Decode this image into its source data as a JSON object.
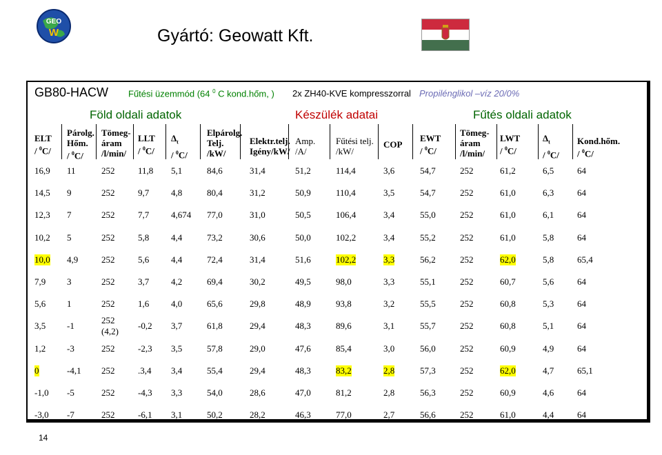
{
  "logo": {
    "text": "GEO W"
  },
  "title": "Gyártó: Geowatt Kft.",
  "subtitle": {
    "model": "GB80-HACW",
    "mode": "Fűtési üzemmód (64 0 C kond.hőm, )",
    "compressor": "2x ZH40-KVE kompresszorral",
    "fluid": "Propilénglikol –víz 20/0%"
  },
  "sections": {
    "earth": "Föld oldali adatok",
    "device": "Készülék adatai",
    "heating": "Fűtés oldali adatok"
  },
  "headers": [
    [
      "ELT",
      "/ 0 C/"
    ],
    [
      "Párolg.",
      "Hőm.",
      "/ 0 C/"
    ],
    [
      "Tömeg-",
      "áram",
      "/l/min/"
    ],
    [
      "LLT",
      "/ 0 C/"
    ],
    [
      "Δ t",
      "/ 0 C/"
    ],
    [
      "Elpárolg.",
      "Telj.",
      "/kW/"
    ],
    [
      "Elektr.telj.",
      "Igény/kW/"
    ],
    [
      "Amp.",
      "/A/"
    ],
    [
      "Fűtési telj.",
      "/kW/"
    ],
    [
      "COP"
    ],
    [
      "EWT",
      "/ 0 C/"
    ],
    [
      "Tömeg-",
      "áram",
      "/l/min/"
    ],
    [
      "LWT",
      "/ 0 C/"
    ],
    [
      "Δ t",
      "/ 0 C/"
    ],
    [
      "Kond.hőm.",
      "/ 0 C/"
    ]
  ],
  "rows": [
    [
      "16,9",
      "11",
      "252",
      "11,8",
      "5,1",
      "84,6",
      "31,4",
      "51,2",
      "114,4",
      "3,6",
      "54,7",
      "252",
      "61,2",
      "6,5",
      "64"
    ],
    [
      "14,5",
      "9",
      "252",
      "9,7",
      "4,8",
      "80,4",
      "31,2",
      "50,9",
      "110,4",
      "3,5",
      "54,7",
      "252",
      "61,0",
      "6,3",
      "64"
    ],
    [
      "12,3",
      "7",
      "252",
      "7,7",
      "4,674",
      "77,0",
      "31,0",
      "50,5",
      "106,4",
      "3,4",
      "55,0",
      "252",
      "61,0",
      "6,1",
      "64"
    ],
    [
      "10,2",
      "5",
      "252",
      "5,8",
      "4,4",
      "73,2",
      "30,6",
      "50,0",
      "102,2",
      "3,4",
      "55,2",
      "252",
      "61,0",
      "5,8",
      "64"
    ],
    [
      "10,0",
      "4,9",
      "252",
      "5,6",
      "4,4",
      "72,4",
      "31,4",
      "51,6",
      "102,2",
      "3,3",
      "56,2",
      "252",
      "62,0",
      "5,8",
      "65,4"
    ],
    [
      "7,9",
      "3",
      "252",
      "3,7",
      "4,2",
      "69,4",
      "30,2",
      "49,5",
      "98,0",
      "3,3",
      "55,1",
      "252",
      "60,7",
      "5,6",
      "64"
    ],
    [
      "5,6",
      "1",
      "252",
      "1,6",
      "4,0",
      "65,6",
      "29,8",
      "48,9",
      "93,8",
      "3,2",
      "55,5",
      "252",
      "60,8",
      "5,3",
      "64"
    ],
    [
      "3,5",
      "-1",
      "252 (4,2)",
      "-0,2",
      "3,7",
      "61,8",
      "29,4",
      "48,3",
      "89,6",
      "3,1",
      "55,7",
      "252",
      "60,8",
      "5,1",
      "64"
    ],
    [
      "1,2",
      "-3",
      "252",
      "-2,3",
      "3,5",
      "57,8",
      "29,0",
      "47,6",
      "85,4",
      "3,0",
      "56,0",
      "252",
      "60,9",
      "4,9",
      "64"
    ],
    [
      "0",
      "-4,1",
      "252",
      ".3,4",
      "3,4",
      "55,4",
      "29,4",
      "48,3",
      "83,2",
      "2,8",
      "57,3",
      "252",
      "62,0",
      "4,7",
      "65,1"
    ],
    [
      "-1,0",
      "-5",
      "252",
      "-4,3",
      "3,3",
      "54,0",
      "28,6",
      "47,0",
      "81,2",
      "2,8",
      "56,3",
      "252",
      "60,9",
      "4,6",
      "64"
    ],
    [
      "-3,0",
      "-7",
      "252",
      "-6,1",
      "3,1",
      "50,2",
      "28,2",
      "46,3",
      "77,0",
      "2,7",
      "56,6",
      "252",
      "61,0",
      "4,4",
      "64"
    ]
  ],
  "highlights": [
    [
      4,
      0
    ],
    [
      4,
      8
    ],
    [
      4,
      9
    ],
    [
      4,
      12
    ],
    [
      9,
      0
    ],
    [
      9,
      8
    ],
    [
      9,
      9
    ],
    [
      9,
      12
    ]
  ],
  "page_number": "14",
  "colors": {
    "earth": "#006400",
    "device": "#c00000",
    "fluid": "#6b6bb5",
    "highlight": "#ffff00"
  }
}
